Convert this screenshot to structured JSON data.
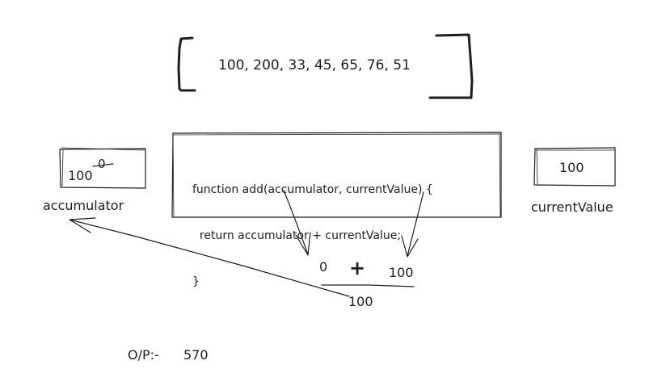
{
  "array": {
    "values": "100, 200, 33, 45, 65, 76, 51"
  },
  "code": {
    "line1": "function add(accumulator, currentValue) {",
    "line2": "  return accumulator + currentValue;",
    "line3": "}"
  },
  "accumulator": {
    "value": "100",
    "old_value": "0",
    "label": "accumulator"
  },
  "current_value": {
    "value": "100",
    "label": "currentValue"
  },
  "operation": {
    "left": "0",
    "operator": "+",
    "right": "100",
    "result": "100"
  },
  "output": {
    "label": "O/P:-",
    "value": "570"
  },
  "colors": {
    "ink": "#1e1e1e",
    "background": "#ffffff"
  }
}
